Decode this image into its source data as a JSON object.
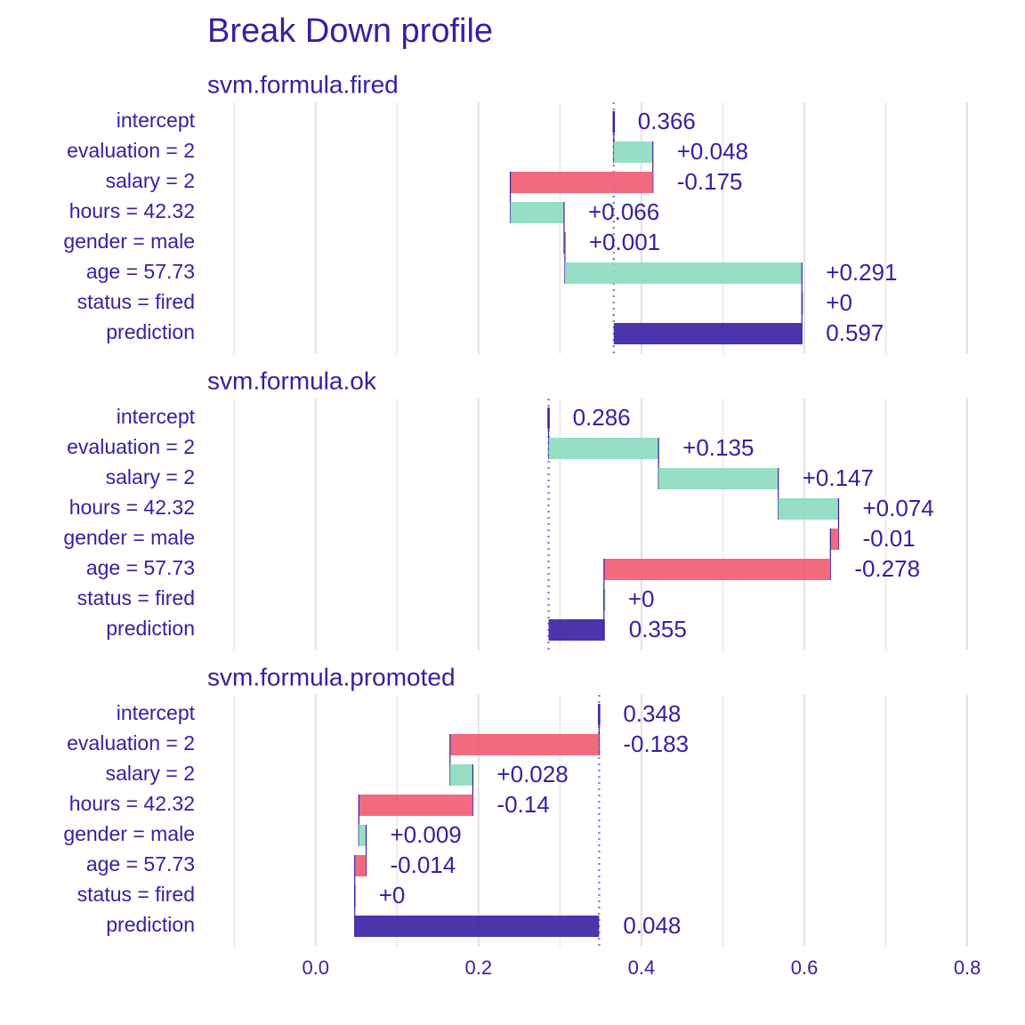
{
  "title": "Break Down profile",
  "chart_data": [
    {
      "type": "waterfall",
      "subtitle": "svm.formula.fired",
      "categories": [
        "intercept",
        "evaluation = 2",
        "salary = 2",
        "hours = 42.32",
        "gender = male",
        "age = 57.73",
        "status = fired",
        "prediction"
      ],
      "values": [
        0.366,
        0.048,
        -0.175,
        0.066,
        0.001,
        0.291,
        0,
        0.597
      ],
      "value_labels": [
        "0.366",
        "+0.048",
        "-0.175",
        "+0.066",
        "+0.001",
        "+0.291",
        "+0",
        "0.597"
      ],
      "colors": {
        "positive": "#8bdcbe",
        "negative": "#f05a71",
        "total": "#371ea3"
      },
      "xlim": [
        -0.133,
        0.825
      ],
      "xticks": [
        {
          "value": 0,
          "label": "0.0"
        },
        0.2,
        0.4,
        0.6,
        0.8
      ],
      "minor_xticks": [
        -0.1,
        0.1,
        0.3,
        0.5,
        0.7
      ],
      "grid": true
    },
    {
      "type": "waterfall",
      "subtitle": "svm.formula.ok",
      "categories": [
        "intercept",
        "evaluation = 2",
        "salary = 2",
        "hours = 42.32",
        "gender = male",
        "age = 57.73",
        "status = fired",
        "prediction"
      ],
      "values": [
        0.286,
        0.135,
        0.147,
        0.074,
        -0.01,
        -0.278,
        0,
        0.355
      ],
      "value_labels": [
        "0.286",
        "+0.135",
        "+0.147",
        "+0.074",
        "-0.01",
        "-0.278",
        "+0",
        "0.355"
      ],
      "colors": {
        "positive": "#8bdcbe",
        "negative": "#f05a71",
        "total": "#371ea3"
      },
      "xlim": [
        -0.133,
        0.825
      ],
      "xticks": [
        {
          "value": 0,
          "label": "0.0"
        },
        0.2,
        0.4,
        0.6,
        0.8
      ],
      "minor_xticks": [
        -0.1,
        0.1,
        0.3,
        0.5,
        0.7
      ],
      "grid": true
    },
    {
      "type": "waterfall",
      "subtitle": "svm.formula.promoted",
      "categories": [
        "intercept",
        "evaluation = 2",
        "salary = 2",
        "hours = 42.32",
        "gender = male",
        "age = 57.73",
        "status = fired",
        "prediction"
      ],
      "values": [
        0.348,
        -0.183,
        0.028,
        -0.14,
        0.009,
        -0.014,
        0,
        0.048
      ],
      "value_labels": [
        "0.348",
        "-0.183",
        "+0.028",
        "-0.14",
        "+0.009",
        "-0.014",
        "+0",
        "0.048"
      ],
      "colors": {
        "positive": "#8bdcbe",
        "negative": "#f05a71",
        "total": "#371ea3"
      },
      "xlim": [
        -0.133,
        0.825
      ],
      "xticks": [
        {
          "value": 0,
          "label": "0.0"
        },
        0.2,
        0.4,
        0.6,
        0.8
      ],
      "minor_xticks": [
        -0.1,
        0.1,
        0.3,
        0.5,
        0.7
      ],
      "grid": true,
      "show_xtick_labels": true
    }
  ]
}
